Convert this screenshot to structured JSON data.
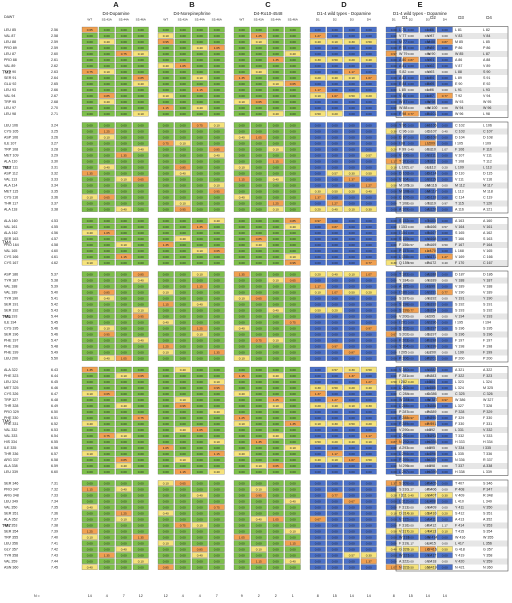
{
  "top_left_label": "DAWT",
  "section_letters": [
    "A",
    "B",
    "C",
    "D",
    "E"
  ],
  "panel_titles": [
    "D4-Dopamine",
    "D4-Norepinephrine",
    "D4-Ro10-4548",
    "D1-4 wild types - Dopamine",
    "D1-4 wild types - Dopamine"
  ],
  "panel_subheaders": [
    [
      "WT",
      "S5.43A",
      "S5.44A",
      "S5.46A"
    ],
    [
      "WT",
      "S5.43A",
      "S5.44A",
      "S5.46A"
    ],
    [
      "WT",
      "S5.43A",
      "S5.44A",
      "S5.46A"
    ],
    [
      "D1",
      "D2",
      "D3",
      "D4"
    ],
    [
      "D1",
      "D2",
      "D3",
      "D4"
    ]
  ],
  "alignment_headers": [
    "D1",
    "D2",
    "D3",
    "D4"
  ],
  "n_label": "N =",
  "n_values": [
    [
      "14",
      "4",
      "7",
      "12"
    ],
    [
      "12",
      "4",
      "4",
      "7"
    ],
    [
      "9",
      "2",
      "2",
      "1"
    ],
    [
      "8",
      "15",
      "14",
      "14"
    ],
    [
      "8",
      "15",
      "14",
      "14"
    ]
  ],
  "tm_labels": [
    "TM2",
    "TM3",
    "TM4",
    "TM5",
    "TM6",
    "TM7"
  ],
  "colors": {
    "green": "#7dbf4a",
    "blue": "#4a70c8",
    "yellow": "#f5e27a",
    "orange": "#f0a050",
    "red": "#e05a3a",
    "gray": "#cccccc"
  },
  "groups": [
    {
      "tm": "TM2",
      "rows": [
        {
          "res": "LEU 85",
          "dawt": "2.56",
          "ali": [
            "L 75",
            "L 86",
            "L 81",
            "L 82"
          ]
        },
        {
          "res": "VAL 87",
          "dawt": "2.58",
          "ali": [
            "V 77",
            "V 87",
            "V 83",
            "V 84"
          ]
        },
        {
          "res": "LEU 88",
          "dawt": "2.59",
          "ali": [
            "M 77",
            "M 88",
            "M 85",
            "L 85"
          ]
        },
        {
          "res": "PRO 89",
          "dawt": "2.59",
          "ali": [
            "P 78",
            "P 89",
            "P 86",
            "P 86"
          ]
        },
        {
          "res": "LEU 87",
          "dawt": "2.60",
          "ali": [
            "W 79",
            "W 90",
            "W 85",
            "L 87"
          ]
        },
        {
          "res": "PRO 88",
          "dawt": "2.61",
          "ali": [
            "A 80",
            "V 91",
            "A 86",
            "A 88"
          ]
        },
        {
          "res": "VAL 89",
          "dawt": "2.62",
          "ali": [
            "A 81",
            "V 92",
            "V 87",
            "V 89"
          ]
        },
        {
          "res": "TYR 90",
          "dawt": "2.63",
          "ali": [
            "S 82",
            "V 93",
            "L 88",
            "S 90"
          ]
        },
        {
          "res": "SER 91",
          "dawt": "2.64",
          "ali": [
            "A 83",
            "L 94",
            "L 89",
            "S 91"
          ]
        },
        {
          "res": "GLU 92",
          "dawt": "2.65",
          "ali": [
            "E 84",
            "E 95",
            "E 90",
            "E 92"
          ]
        },
        {
          "res": "LEU 93",
          "dawt": "2.66",
          "ali": [
            "L 85",
            "L 96",
            "L 91",
            "L 93"
          ]
        },
        {
          "res": "VAL 94",
          "dawt": "2.67",
          "ali": [
            "V 86",
            "L 97",
            "T 92",
            "V 94"
          ]
        },
        {
          "res": "TRP 95",
          "dawt": "2.68",
          "ali": [
            "W 87",
            "W 98",
            "W 93",
            "W 95"
          ]
        },
        {
          "res": "LEU 97",
          "dawt": "2.70",
          "ali": [
            "W 88",
            "W 100",
            "W 94",
            "W 96"
          ]
        },
        {
          "res": "LEU 98",
          "dawt": "2.71",
          "ali": [
            "F 98",
            "E 101",
            "W 96",
            "L 98"
          ]
        }
      ]
    },
    {
      "tm": "TM3",
      "rows": [
        {
          "res": "LEU 106",
          "dawt": "3.24",
          "ali": [
            "Y 96",
            "H 106",
            "C 102",
            "L 106"
          ]
        },
        {
          "res": "CYS 105",
          "dawt": "3.25",
          "ali": [
            "C 96",
            "C 107",
            "C 103",
            "C 107"
          ]
        },
        {
          "res": "ASP 106",
          "dawt": "3.26",
          "ali": [
            "D 97",
            "D 108",
            "D 104",
            "D 108"
          ]
        },
        {
          "res": "ILE 107",
          "dawt": "3.27",
          "ali": [
            "I 98",
            "I 109",
            "I 105",
            "I 109"
          ]
        },
        {
          "res": "TRP 108",
          "dawt": "3.28",
          "ali": [
            "F 99",
            "F 110",
            "F 106",
            "F 110"
          ]
        },
        {
          "res": "MET 109",
          "dawt": "3.29",
          "ali": [
            "V 100",
            "V 111",
            "V 107",
            "V 111"
          ]
        },
        {
          "res": "ALA 110",
          "dawt": "3.30",
          "ali": [
            "T 101",
            "T 112",
            "T 108",
            "T 112"
          ]
        },
        {
          "res": "MET 111",
          "dawt": "3.31",
          "ali": [
            "L 102",
            "L 113",
            "L 109",
            "L 113"
          ]
        },
        {
          "res": "ASP 112",
          "dawt": "3.32",
          "ali": [
            "D 103",
            "D 114",
            "D 110",
            "D 115"
          ]
        },
        {
          "res": "VAL 113",
          "dawt": "3.33",
          "ali": [
            "V 104",
            "V 115",
            "V 111",
            "V 116"
          ]
        },
        {
          "res": "ALA 114",
          "dawt": "3.34",
          "ali": [
            "M 105",
            "M 116",
            "M 112",
            "M 117"
          ]
        },
        {
          "res": "MET 115",
          "dawt": "3.35",
          "ali": [
            "M 106",
            "M 117",
            "L 113",
            "M 118"
          ]
        },
        {
          "res": "CYS 116",
          "dawt": "3.36",
          "ali": [
            "C 107",
            "C 118",
            "C 114",
            "C 119"
          ]
        },
        {
          "res": "THR 117",
          "dawt": "3.37",
          "ali": [
            "T 108",
            "T 119",
            "T 115",
            "T 120"
          ]
        },
        {
          "res": "ALA 118",
          "dawt": "3.38",
          "ali": [
            "A 109",
            "A 120",
            "A 116",
            "A 121"
          ]
        }
      ]
    },
    {
      "tm": "TM4",
      "rows": [
        {
          "res": "ALA 160",
          "dawt": "4.53",
          "ali": [
            "S 152",
            "T 165",
            "A 163",
            "A 160"
          ]
        },
        {
          "res": "VAL 161",
          "dawt": "4.55",
          "ali": [
            "I 153",
            "S 166",
            "V 164",
            "V 161"
          ]
        },
        {
          "res": "ALA 162",
          "dawt": "4.56",
          "ali": [
            "I 154",
            "S 167",
            "S 165",
            "A 162"
          ]
        },
        {
          "res": "SER 163",
          "dawt": "4.57",
          "ali": [
            "S 155",
            "V 168",
            "T 166",
            "S 163"
          ]
        },
        {
          "res": "PRO 164",
          "dawt": "4.58",
          "ali": [
            "F 156",
            "F 169",
            "F 167",
            "P 164"
          ]
        },
        {
          "res": "VAL 165",
          "dawt": "4.60",
          "ali": [
            "P 157",
            "L 170",
            "L 168",
            "V 165"
          ]
        },
        {
          "res": "CYS 166",
          "dawt": "4.61",
          "ali": [
            "L 158",
            "V 171",
            "V 169",
            "C 166"
          ]
        },
        {
          "res": "CYS 167",
          "dawt": "4.62",
          "ali": [
            "Q 159",
            "F 172",
            "F 170",
            "C 167"
          ]
        }
      ]
    },
    {
      "tm": "TM5",
      "rows": [
        {
          "res": "ASP 186",
          "dawt": "5.37",
          "ali": [
            "T 183",
            "A 188",
            "D 187",
            "D 186"
          ]
        },
        {
          "res": "TYR 187",
          "dawt": "5.38",
          "ali": [
            "Y 184",
            "Y 189",
            "Y 188",
            "Y 187"
          ]
        },
        {
          "res": "VAL 188",
          "dawt": "5.39",
          "ali": [
            "A 185",
            "I 190",
            "V 189",
            "V 188"
          ]
        },
        {
          "res": "VAL 189",
          "dawt": "5.40",
          "ali": [
            "I 186",
            "V 191",
            "V 190",
            "V 189"
          ]
        },
        {
          "res": "TYR 190",
          "dawt": "5.41",
          "ali": [
            "S 187",
            "Y 192",
            "Y 191",
            "Y 190"
          ]
        },
        {
          "res": "SER 191",
          "dawt": "5.42",
          "ali": [
            "S 198",
            "S 193",
            "S 192",
            "S 191"
          ]
        },
        {
          "res": "SER 192",
          "dawt": "5.43",
          "ali": [
            "S 199",
            "S 194",
            "S 193",
            "S 192"
          ]
        },
        {
          "res": "VAL 193",
          "dawt": "5.44",
          "ali": [
            "V 200",
            "I 195",
            "V 194",
            "V 193"
          ]
        },
        {
          "res": "ILE 194",
          "dawt": "5.45",
          "ali": [
            "I 201",
            "V 196",
            "I 195",
            "I 194"
          ]
        },
        {
          "res": "CYS 195",
          "dawt": "5.46",
          "ali": [
            "S 202",
            "S 197",
            "S 196",
            "S 195"
          ]
        },
        {
          "res": "SER 196",
          "dawt": "5.46",
          "ali": [
            "S 202",
            "S 197",
            "S 196",
            "S 196"
          ]
        },
        {
          "res": "PHE 197",
          "dawt": "5.47",
          "ali": [
            "F 203",
            "F 198",
            "F 197",
            "F 197"
          ]
        },
        {
          "res": "PHE 198",
          "dawt": "5.48",
          "ali": [
            "Y 204",
            "Y 199",
            "Y 198",
            "F 198"
          ]
        },
        {
          "res": "PHE 199",
          "dawt": "5.49",
          "ali": [
            "I 205",
            "L 200",
            "L 199",
            "F 199"
          ]
        },
        {
          "res": "LEU 200",
          "dawt": "5.50",
          "ali": [
            "P 206",
            "P 201",
            "P 200",
            "P 200"
          ]
        }
      ]
    },
    {
      "tm": "TM6",
      "rows": [
        {
          "res": "ALA 322",
          "dawt": "6.43",
          "ali": [
            "V 280",
            "V 382",
            "A 321",
            "A 322"
          ]
        },
        {
          "res": "PHE 323",
          "dawt": "6.44",
          "ali": [
            "F 281",
            "F 383",
            "F 322",
            "F 323"
          ]
        },
        {
          "res": "LEU 324",
          "dawt": "6.45",
          "ali": [
            "I 282",
            "I 384",
            "L 323",
            "L 324"
          ]
        },
        {
          "res": "MET 325",
          "dawt": "6.46",
          "ali": [
            "L 283",
            "L 385",
            "L 324",
            "M 325"
          ]
        },
        {
          "res": "CYS 326",
          "dawt": "6.47",
          "ali": [
            "C 284",
            "C 386",
            "C 325",
            "C 326"
          ]
        },
        {
          "res": "TRP 327",
          "dawt": "6.48",
          "ali": [
            "W 285",
            "W 387",
            "W 386",
            "W 327"
          ]
        },
        {
          "res": "THR 328",
          "dawt": "6.49",
          "ali": [
            "L 286",
            "T 388",
            "L 327",
            "T 328"
          ]
        },
        {
          "res": "PRO 329",
          "dawt": "6.50",
          "ali": [
            "P 287",
            "P 389",
            "P 328",
            "P 329"
          ]
        },
        {
          "res": "PHE 330",
          "dawt": "6.51",
          "ali": [
            "F 288",
            "F 390",
            "F 329",
            "F 330"
          ]
        },
        {
          "res": "PHE 331",
          "dawt": "6.52",
          "ali": [
            "F 289",
            "F 391",
            "F 330",
            "F 331"
          ]
        },
        {
          "res": "VAL 332",
          "dawt": "6.53",
          "ali": [
            "V 290",
            "I 392",
            "L 331",
            "V 332"
          ]
        },
        {
          "res": "VAL 333",
          "dawt": "6.54",
          "ali": [
            "L 291",
            "T 393",
            "T 332",
            "V 333"
          ]
        },
        {
          "res": "HIS 334",
          "dawt": "6.55",
          "ali": [
            "N 292",
            "H 394",
            "H 333",
            "H 334"
          ]
        },
        {
          "res": "ILE 335",
          "dawt": "6.56",
          "ali": [
            "A 293",
            "I 395",
            "V 334",
            "I 335"
          ]
        },
        {
          "res": "THR 336",
          "dawt": "6.57",
          "ali": [
            "L 294",
            "L 396",
            "L 335",
            "T 336"
          ]
        },
        {
          "res": "ARG 337",
          "dawt": "6.58",
          "ali": [
            "P 295",
            "N 397",
            "N 336",
            "R 337"
          ]
        },
        {
          "res": "ALA 338",
          "dawt": "6.59",
          "ali": [
            "N 296",
            "I 398",
            "T 337",
            "A 338"
          ]
        },
        {
          "res": "LEU 339",
          "dawt": "6.60",
          "ali": [
            "L 297",
            "H 399",
            "H 338",
            "L 339"
          ]
        }
      ]
    },
    {
      "tm": "TM7",
      "rows": [
        {
          "res": "SER 346",
          "dawt": "7.31",
          "ali": [
            "S 309",
            "P 405",
            "T 407",
            "S 346"
          ]
        },
        {
          "res": "PRO 347",
          "dawt": "7.32",
          "ali": [
            "S 310",
            "P 406",
            "P 408",
            "P 347"
          ]
        },
        {
          "res": "ARG 348",
          "dawt": "7.33",
          "ali": [
            "I 311",
            "V 407",
            "V 409",
            "R 348"
          ]
        },
        {
          "res": "LEU 349",
          "dawt": "7.34",
          "ali": [
            "L 312",
            "L 408",
            "L 410",
            "L 349"
          ]
        },
        {
          "res": "VAL 350",
          "dawt": "7.35",
          "ali": [
            "F 313",
            "Y 409",
            "Y 411",
            "V 350"
          ]
        },
        {
          "res": "SER 351",
          "dawt": "7.36",
          "ali": [
            "D 314",
            "S 410",
            "S 412",
            "S 351"
          ]
        },
        {
          "res": "ALA 352",
          "dawt": "7.37",
          "ali": [
            "V 315",
            "A 411",
            "A 413",
            "A 352"
          ]
        },
        {
          "res": "VAL 353",
          "dawt": "7.38",
          "ali": [
            "F 316",
            "F 412",
            "F 414",
            "V 353"
          ]
        },
        {
          "res": "SER 354",
          "dawt": "7.39",
          "ali": [
            "V 317",
            "T 413",
            "T 415",
            "S 354"
          ]
        },
        {
          "res": "TRP 355",
          "dawt": "7.40",
          "ali": [
            "W 318",
            "W 414",
            "W 416",
            "W 355"
          ]
        },
        {
          "res": "LEU 356",
          "dawt": "7.41",
          "ali": [
            "F 319",
            "L 415",
            "L 417",
            "L 356"
          ]
        },
        {
          "res": "GLY 357",
          "dawt": "7.42",
          "ali": [
            "G 320",
            "G 416",
            "G 418",
            "G 357"
          ]
        },
        {
          "res": "TYR 358",
          "dawt": "7.43",
          "ali": [
            "W 321",
            "Y 417",
            "Y 419",
            "Y 358"
          ]
        },
        {
          "res": "VAL 359",
          "dawt": "7.44",
          "ali": [
            "A 322",
            "V 418",
            "V 420",
            "V 359"
          ]
        },
        {
          "res": "ASN 360",
          "dawt": "7.45",
          "ali": [
            "N 323",
            "N 419",
            "N 421",
            "N 360"
          ]
        }
      ]
    }
  ]
}
